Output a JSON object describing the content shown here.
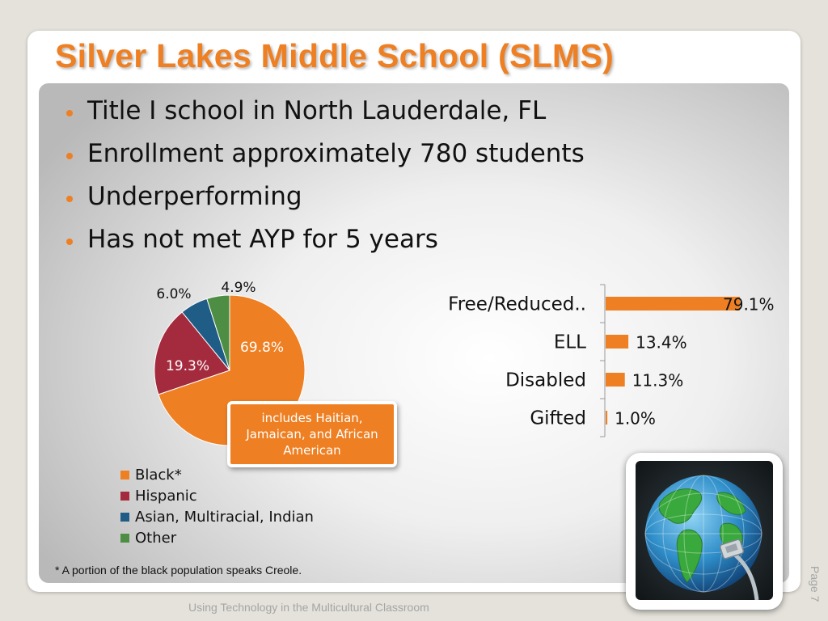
{
  "slide": {
    "title": "Silver Lakes Middle School (SLMS)",
    "bullets": [
      "Title I school in North Lauderdale, FL",
      "Enrollment approximately 780 students",
      "Underperforming",
      "Has not met AYP for 5 years"
    ],
    "callout": "includes Haitian, Jamaican, and African American",
    "footnote": "* A portion of the black population speaks Creole.",
    "footer": "Using Technology in the Multicultural Classroom",
    "page_number": "Page 7",
    "accent_color": "#EE7F22"
  },
  "chart_data": [
    {
      "type": "pie",
      "categories": [
        "Black*",
        "Hispanic",
        "Asian, Multiracial, Indian",
        "Other"
      ],
      "values": [
        69.8,
        19.3,
        6.0,
        4.9
      ],
      "data_labels": [
        "69.8%",
        "19.3%",
        "6.0%",
        "4.9%"
      ],
      "colors": [
        "#EE7F22",
        "#A42B3D",
        "#1F5C86",
        "#4E8E44"
      ],
      "legend": "bottom"
    },
    {
      "type": "bar",
      "orientation": "horizontal",
      "categories": [
        "Free/Reduced..",
        "ELL",
        "Disabled",
        "Gifted"
      ],
      "values": [
        79.1,
        13.4,
        11.3,
        1.0
      ],
      "data_labels": [
        "79.1%",
        "13.4%",
        "11.3%",
        "1.0%"
      ],
      "color": "#EE7F22",
      "xlim": [
        0,
        100
      ]
    }
  ]
}
